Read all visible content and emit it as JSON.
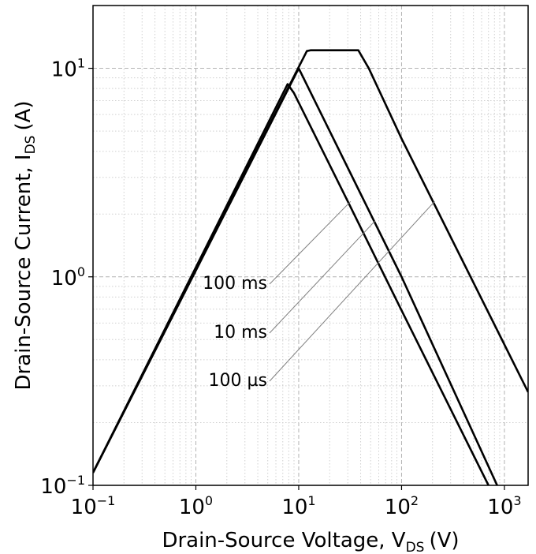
{
  "chart_data": {
    "type": "line",
    "xlabel": "Drain-Source Voltage, V",
    "xlabel_sub": "DS",
    "xlabel_unit": "(V)",
    "ylabel": "Drain-Source Current, I",
    "ylabel_sub": "DS",
    "ylabel_unit": "(A)",
    "x_scale": "log",
    "y_scale": "log",
    "xlim": [
      0.1,
      1700
    ],
    "ylim": [
      0.1,
      20
    ],
    "grid": true,
    "x_ticks": [
      {
        "value": 0.1,
        "base": "10",
        "exp": "−1"
      },
      {
        "value": 1,
        "base": "10",
        "exp": "0"
      },
      {
        "value": 10,
        "base": "10",
        "exp": "1"
      },
      {
        "value": 100,
        "base": "10",
        "exp": "2"
      },
      {
        "value": 1000,
        "base": "10",
        "exp": "3"
      }
    ],
    "y_ticks": [
      {
        "value": 0.1,
        "base": "10",
        "exp": "−1"
      },
      {
        "value": 1,
        "base": "10",
        "exp": "0"
      },
      {
        "value": 10,
        "base": "10",
        "exp": "1"
      }
    ],
    "series": [
      {
        "name": "100 ms",
        "points": [
          [
            0.1,
            0.115
          ],
          [
            7.8,
            8.4
          ],
          [
            9,
            7.6
          ],
          [
            30,
            2.3
          ],
          [
            100,
            0.69
          ],
          [
            700,
            0.1
          ]
        ]
      },
      {
        "name": "10 ms",
        "points": [
          [
            0.1,
            0.115
          ],
          [
            10,
            10
          ],
          [
            40,
            2.5
          ],
          [
            100,
            1.0
          ],
          [
            850,
            0.1
          ]
        ]
      },
      {
        "name": "100 µs",
        "points": [
          [
            0.1,
            0.115
          ],
          [
            12,
            12.1
          ],
          [
            13,
            12.2
          ],
          [
            38,
            12.2
          ],
          [
            48,
            10
          ],
          [
            100,
            4.6
          ],
          [
            1700,
            0.28
          ]
        ]
      }
    ],
    "annotations": [
      {
        "label": "100 ms",
        "target": [
          32,
          2.3
        ]
      },
      {
        "label": "10 ms",
        "target": [
          55,
          1.85
        ]
      },
      {
        "label": "100 µs",
        "target": [
          210,
          2.3
        ]
      }
    ]
  }
}
